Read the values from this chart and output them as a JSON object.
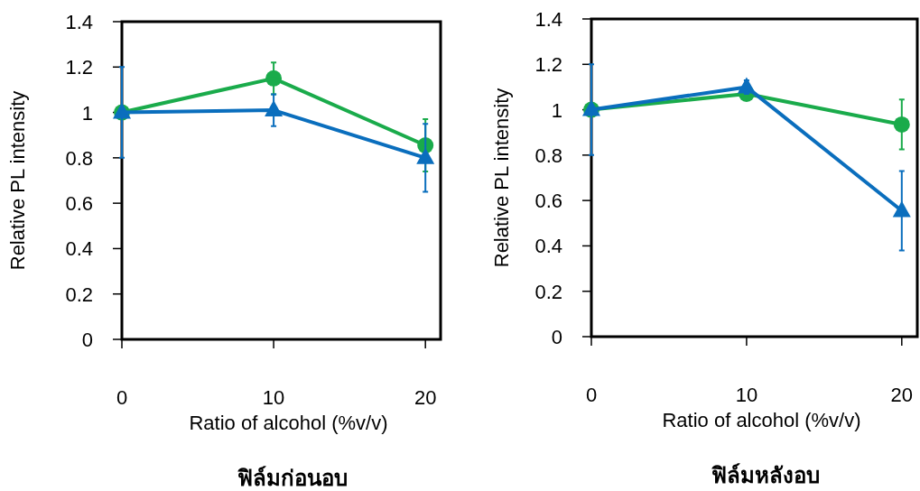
{
  "chart_data": [
    {
      "type": "line",
      "title": "ฟิล์มก่อนอบ",
      "xlabel": "Ratio of alcohol (%v/v)",
      "ylabel": "Relative PL intensity",
      "x": [
        0,
        10,
        20
      ],
      "xlim": [
        0,
        21
      ],
      "xticks": [
        0,
        10,
        20
      ],
      "ylim": [
        0,
        1.4
      ],
      "yticks": [
        0,
        0.2,
        0.4,
        0.6,
        0.8,
        1,
        1.2,
        1.4
      ],
      "series": [
        {
          "color": "#1aab4b",
          "marker": "circle",
          "values": [
            1.0,
            1.15,
            0.855
          ],
          "errors": [
            null,
            0.07,
            0.115
          ]
        },
        {
          "color": "#0a6ebd",
          "marker": "triangle",
          "values": [
            1.0,
            1.01,
            0.8
          ],
          "errors": [
            0.2,
            0.07,
            0.15
          ]
        }
      ]
    },
    {
      "type": "line",
      "title": "ฟิล์มหลังอบ",
      "xlabel": "Ratio of alcohol (%v/v)",
      "ylabel": "Relative PL intensity",
      "x": [
        0,
        10,
        20
      ],
      "xlim": [
        0,
        21
      ],
      "xticks": [
        0,
        10,
        20
      ],
      "ylim": [
        0,
        1.4
      ],
      "yticks": [
        0,
        0.2,
        0.4,
        0.6,
        0.8,
        1,
        1.2,
        1.4
      ],
      "series": [
        {
          "color": "#1aab4b",
          "marker": "circle",
          "values": [
            1.0,
            1.07,
            0.935
          ],
          "errors": [
            null,
            null,
            0.11
          ]
        },
        {
          "color": "#0a6ebd",
          "marker": "triangle",
          "values": [
            1.0,
            1.1,
            0.555
          ],
          "errors": [
            0.2,
            0.03,
            0.175
          ]
        }
      ]
    }
  ]
}
